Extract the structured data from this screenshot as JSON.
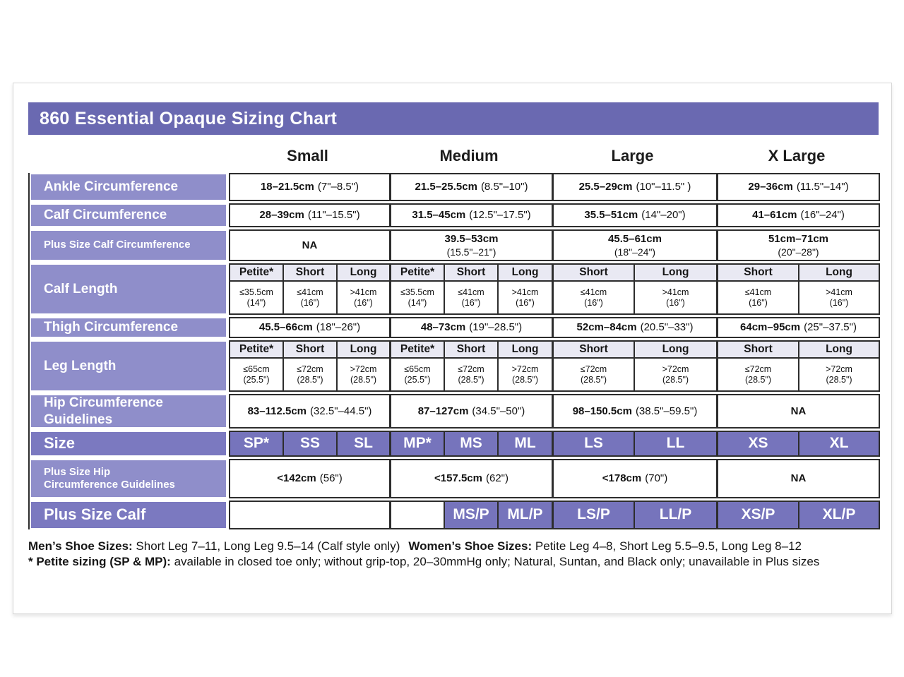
{
  "title": "860 Essential Opaque Sizing Chart",
  "columns": [
    "Small",
    "Medium",
    "Large",
    "X Large"
  ],
  "colors": {
    "title_bar": "#6a69b1",
    "row_label": "#8f8eca",
    "row_label_dark": "#7b79c0",
    "size_cell": "#7674bc",
    "subheader_bg": "#e9e9f3",
    "cell_border": "#2d2d2d"
  },
  "table": {
    "ankle": {
      "label": "Ankle Circumference",
      "small": {
        "cm": "18–21.5cm",
        "in": "(7\"–8.5\")"
      },
      "medium": {
        "cm": "21.5–25.5cm",
        "in": "(8.5\"–10\")"
      },
      "large": {
        "cm": "25.5–29cm",
        "in": "(10\"–11.5\" )"
      },
      "xlarge": {
        "cm": "29–36cm",
        "in": "(11.5\"–14\")"
      }
    },
    "calf": {
      "label": "Calf Circumference",
      "small": {
        "cm": "28–39cm",
        "in": "(11\"–15.5\")"
      },
      "medium": {
        "cm": "31.5–45cm",
        "in": "(12.5\"–17.5\")"
      },
      "large": {
        "cm": "35.5–51cm",
        "in": "(14\"–20\")"
      },
      "xlarge": {
        "cm": "41–61cm",
        "in": "(16\"–24\")"
      }
    },
    "plus_calf_circ": {
      "label": "Plus Size Calf Circumference",
      "small": {
        "cm": "NA",
        "in": ""
      },
      "medium": {
        "cm": "39.5–53cm",
        "in": "(15.5\"–21\")"
      },
      "large": {
        "cm": "45.5–61cm",
        "in": "(18\"–24\")"
      },
      "xlarge": {
        "cm": "51cm–71cm",
        "in": "(20\"–28\")"
      }
    },
    "calf_length": {
      "label": "Calf Length",
      "subheads": [
        "Petite*",
        "Short",
        "Long",
        "Petite*",
        "Short",
        "Long",
        "Short",
        "Long",
        "Short",
        "Long"
      ],
      "values": [
        {
          "cm": "≤35.5cm",
          "in": "(14\")"
        },
        {
          "cm": "≤41cm",
          "in": "(16\")"
        },
        {
          "cm": ">41cm",
          "in": "(16\")"
        },
        {
          "cm": "≤35.5cm",
          "in": "(14\")"
        },
        {
          "cm": "≤41cm",
          "in": "(16\")"
        },
        {
          "cm": ">41cm",
          "in": "(16\")"
        },
        {
          "cm": "≤41cm",
          "in": "(16\")"
        },
        {
          "cm": ">41cm",
          "in": "(16\")"
        },
        {
          "cm": "≤41cm",
          "in": "(16\")"
        },
        {
          "cm": ">41cm",
          "in": "(16\")"
        }
      ]
    },
    "thigh": {
      "label": "Thigh Circumference",
      "small": {
        "cm": "45.5–66cm",
        "in": "(18\"–26\")"
      },
      "medium": {
        "cm": "48–73cm",
        "in": "(19\"–28.5\")"
      },
      "large": {
        "cm": "52cm–84cm",
        "in": "(20.5\"–33\")"
      },
      "xlarge": {
        "cm": "64cm–95cm",
        "in": "(25\"–37.5\")"
      }
    },
    "leg_length": {
      "label": "Leg Length",
      "subheads": [
        "Petite*",
        "Short",
        "Long",
        "Petite*",
        "Short",
        "Long",
        "Short",
        "Long",
        "Short",
        "Long"
      ],
      "values": [
        {
          "cm": "≤65cm",
          "in": "(25.5\")"
        },
        {
          "cm": "≤72cm",
          "in": "(28.5\")"
        },
        {
          "cm": ">72cm",
          "in": "(28.5\")"
        },
        {
          "cm": "≤65cm",
          "in": "(25.5\")"
        },
        {
          "cm": "≤72cm",
          "in": "(28.5\")"
        },
        {
          "cm": ">72cm",
          "in": "(28.5\")"
        },
        {
          "cm": "≤72cm",
          "in": "(28.5\")"
        },
        {
          "cm": ">72cm",
          "in": "(28.5\")"
        },
        {
          "cm": "≤72cm",
          "in": "(28.5\")"
        },
        {
          "cm": ">72cm",
          "in": "(28.5\")"
        }
      ]
    },
    "hip": {
      "label_line1": "Hip Circumference",
      "label_line2": "Guidelines",
      "small": {
        "cm": "83–112.5cm",
        "in": "(32.5\"–44.5\")"
      },
      "medium": {
        "cm": "87–127cm",
        "in": "(34.5\"–50\")"
      },
      "large": {
        "cm": "98–150.5cm",
        "in": "(38.5\"–59.5\")"
      },
      "xlarge": {
        "cm": "NA",
        "in": ""
      }
    },
    "size": {
      "label": "Size",
      "values": [
        "SP*",
        "SS",
        "SL",
        "MP*",
        "MS",
        "ML",
        "LS",
        "LL",
        "XS",
        "XL"
      ]
    },
    "plus_hip": {
      "label_line1": "Plus Size Hip",
      "label_line2": "Circumference Guidelines",
      "small": {
        "cm": "<142cm",
        "in": "(56\")"
      },
      "medium": {
        "cm": "<157.5cm",
        "in": "(62\")"
      },
      "large": {
        "cm": "<178cm",
        "in": "(70\")"
      },
      "xlarge": {
        "cm": "NA",
        "in": ""
      }
    },
    "plus_calf": {
      "label": "Plus Size Calf",
      "values": [
        "",
        "",
        "MS/P",
        "ML/P",
        "LS/P",
        "LL/P",
        "XS/P",
        "XL/P"
      ]
    }
  },
  "notes": {
    "mens_label": "Men’s Shoe Sizes:",
    "mens_text": "Short Leg 7–11, Long Leg 9.5–14 (Calf style only)",
    "womens_label": "Women’s Shoe Sizes:",
    "womens_text": "Petite Leg 4–8,  Short Leg 5.5–9.5, Long Leg 8–12",
    "petite_label": "* Petite sizing (SP & MP):",
    "petite_text": "available in closed toe only; without grip-top, 20–30mmHg only; Natural, Suntan, and Black only; unavailable in Plus sizes"
  },
  "chart_data": {
    "type": "table",
    "title": "860 Essential Opaque Sizing Chart",
    "columns": [
      "",
      "Small",
      "Medium",
      "Large",
      "X Large"
    ],
    "rows": [
      [
        "Ankle Circumference",
        "18–21.5cm (7\"–8.5\")",
        "21.5–25.5cm (8.5\"–10\")",
        "25.5–29cm (10\"–11.5\" )",
        "29–36cm (11.5\"–14\")"
      ],
      [
        "Calf Circumference",
        "28–39cm (11\"–15.5\")",
        "31.5–45cm (12.5\"–17.5\")",
        "35.5–51cm (14\"–20\")",
        "41–61cm (16\"–24\")"
      ],
      [
        "Plus Size Calf Circumference",
        "NA",
        "39.5–53cm (15.5\"–21\")",
        "45.5–61cm (18\"–24\")",
        "51cm–71cm (20\"–28\")"
      ],
      [
        "Calf Length",
        "Petite* ≤35.5cm (14\") | Short ≤41cm (16\") | Long >41cm (16\")",
        "Petite* ≤35.5cm (14\") | Short ≤41cm (16\") | Long >41cm (16\")",
        "Short ≤41cm (16\") | Long >41cm (16\")",
        "Short ≤41cm (16\") | Long >41cm (16\")"
      ],
      [
        "Thigh Circumference",
        "45.5–66cm (18\"–26\")",
        "48–73cm (19\"–28.5\")",
        "52cm–84cm (20.5\"–33\")",
        "64cm–95cm (25\"–37.5\")"
      ],
      [
        "Leg Length",
        "Petite* ≤65cm (25.5\") | Short ≤72cm (28.5\") | Long >72cm (28.5\")",
        "Petite* ≤65cm (25.5\") | Short ≤72cm (28.5\") | Long >72cm (28.5\")",
        "Short ≤72cm (28.5\") | Long >72cm (28.5\")",
        "Short ≤72cm (28.5\") | Long >72cm (28.5\")"
      ],
      [
        "Hip Circumference Guidelines",
        "83–112.5cm (32.5\"–44.5\")",
        "87–127cm (34.5\"–50\")",
        "98–150.5cm (38.5\"–59.5\")",
        "NA"
      ],
      [
        "Size",
        "SP* | SS | SL",
        "MP* | MS | ML",
        "LS | LL",
        "XS | XL"
      ],
      [
        "Plus Size Hip Circumference Guidelines",
        "<142cm (56\")",
        "<157.5cm (62\")",
        "<178cm (70\")",
        "NA"
      ],
      [
        "Plus Size Calf",
        "",
        "MS/P | ML/P",
        "LS/P | LL/P",
        "XS/P | XL/P"
      ]
    ]
  }
}
